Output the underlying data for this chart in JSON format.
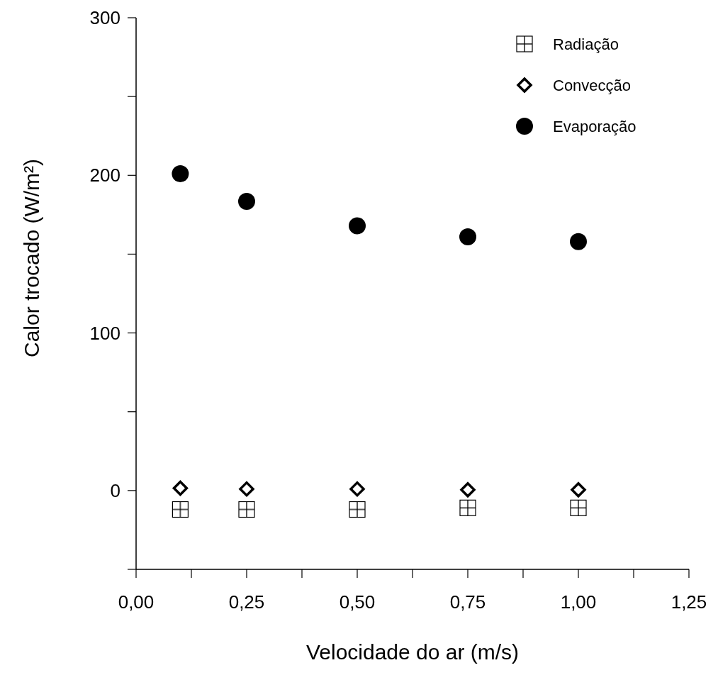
{
  "chart_data": {
    "type": "scatter",
    "xlabel": "Velocidade do ar (m/s)",
    "ylabel": "Calor trocado (W/m²)",
    "xlim": [
      0,
      1.25
    ],
    "ylim": [
      -50,
      300
    ],
    "xticks": [
      {
        "value": 0,
        "label": "0,00"
      },
      {
        "value": 0.125,
        "label": null
      },
      {
        "value": 0.25,
        "label": "0,25"
      },
      {
        "value": 0.375,
        "label": null
      },
      {
        "value": 0.5,
        "label": "0,50"
      },
      {
        "value": 0.625,
        "label": null
      },
      {
        "value": 0.75,
        "label": "0,75"
      },
      {
        "value": 0.875,
        "label": null
      },
      {
        "value": 1,
        "label": "1,00"
      },
      {
        "value": 1.125,
        "label": null
      },
      {
        "value": 1.25,
        "label": "1,25"
      }
    ],
    "yticks": [
      {
        "value": -50,
        "label": null
      },
      0,
      {
        "value": 50,
        "label": null
      },
      100,
      {
        "value": 150,
        "label": null
      },
      200,
      {
        "value": 250,
        "label": null
      },
      300
    ],
    "grid": false,
    "legend": "top right",
    "series": [
      {
        "name": "Radiação",
        "color": "#000000",
        "marker": "square",
        "x": [
          0.1,
          0.25,
          0.5,
          0.75,
          1.0
        ],
        "values": [
          -12,
          -12,
          -12,
          -11,
          -11
        ]
      },
      {
        "name": "Convecção",
        "color": "#000000",
        "marker": "diamond",
        "x": [
          0.1,
          0.25,
          0.5,
          0.75,
          1.0
        ],
        "values": [
          1.5,
          1,
          1,
          0.5,
          0.5
        ]
      },
      {
        "name": "Evaporação",
        "color": "#000000",
        "marker": "circle",
        "x": [
          0.1,
          0.25,
          0.5,
          0.75,
          1.0
        ],
        "values": [
          201,
          183.5,
          168,
          161,
          158
        ]
      }
    ]
  }
}
